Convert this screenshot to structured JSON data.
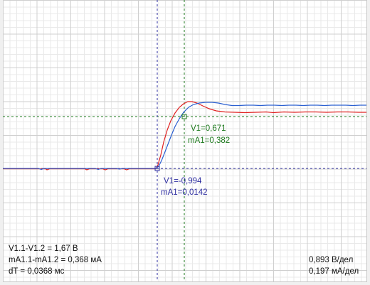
{
  "colors": {
    "grid_minor": "#e9e9e9",
    "grid_major": "#cfcfcf",
    "channel_v": "#e02020",
    "channel_ma": "#2a5fd0",
    "cursor1": "#1e7a1e",
    "cursor2": "#2e2ea0",
    "text": "#111111"
  },
  "cursor1": {
    "v_label": "V1=0,671",
    "ma_label": "mA1=0,382"
  },
  "cursor2": {
    "v_label": "V1=-0,994",
    "ma_label": "mA1=0,0142"
  },
  "readout": {
    "dv": "V1.1-V1.2 = 1,67 В",
    "dma": "mA1.1-mA1.2 = 0,368 мА",
    "dt": "dT = 0,0368 мс"
  },
  "scale": {
    "v_per_div": "0,893 В/дел",
    "ma_per_div": "0,197 мА/дел"
  }
}
